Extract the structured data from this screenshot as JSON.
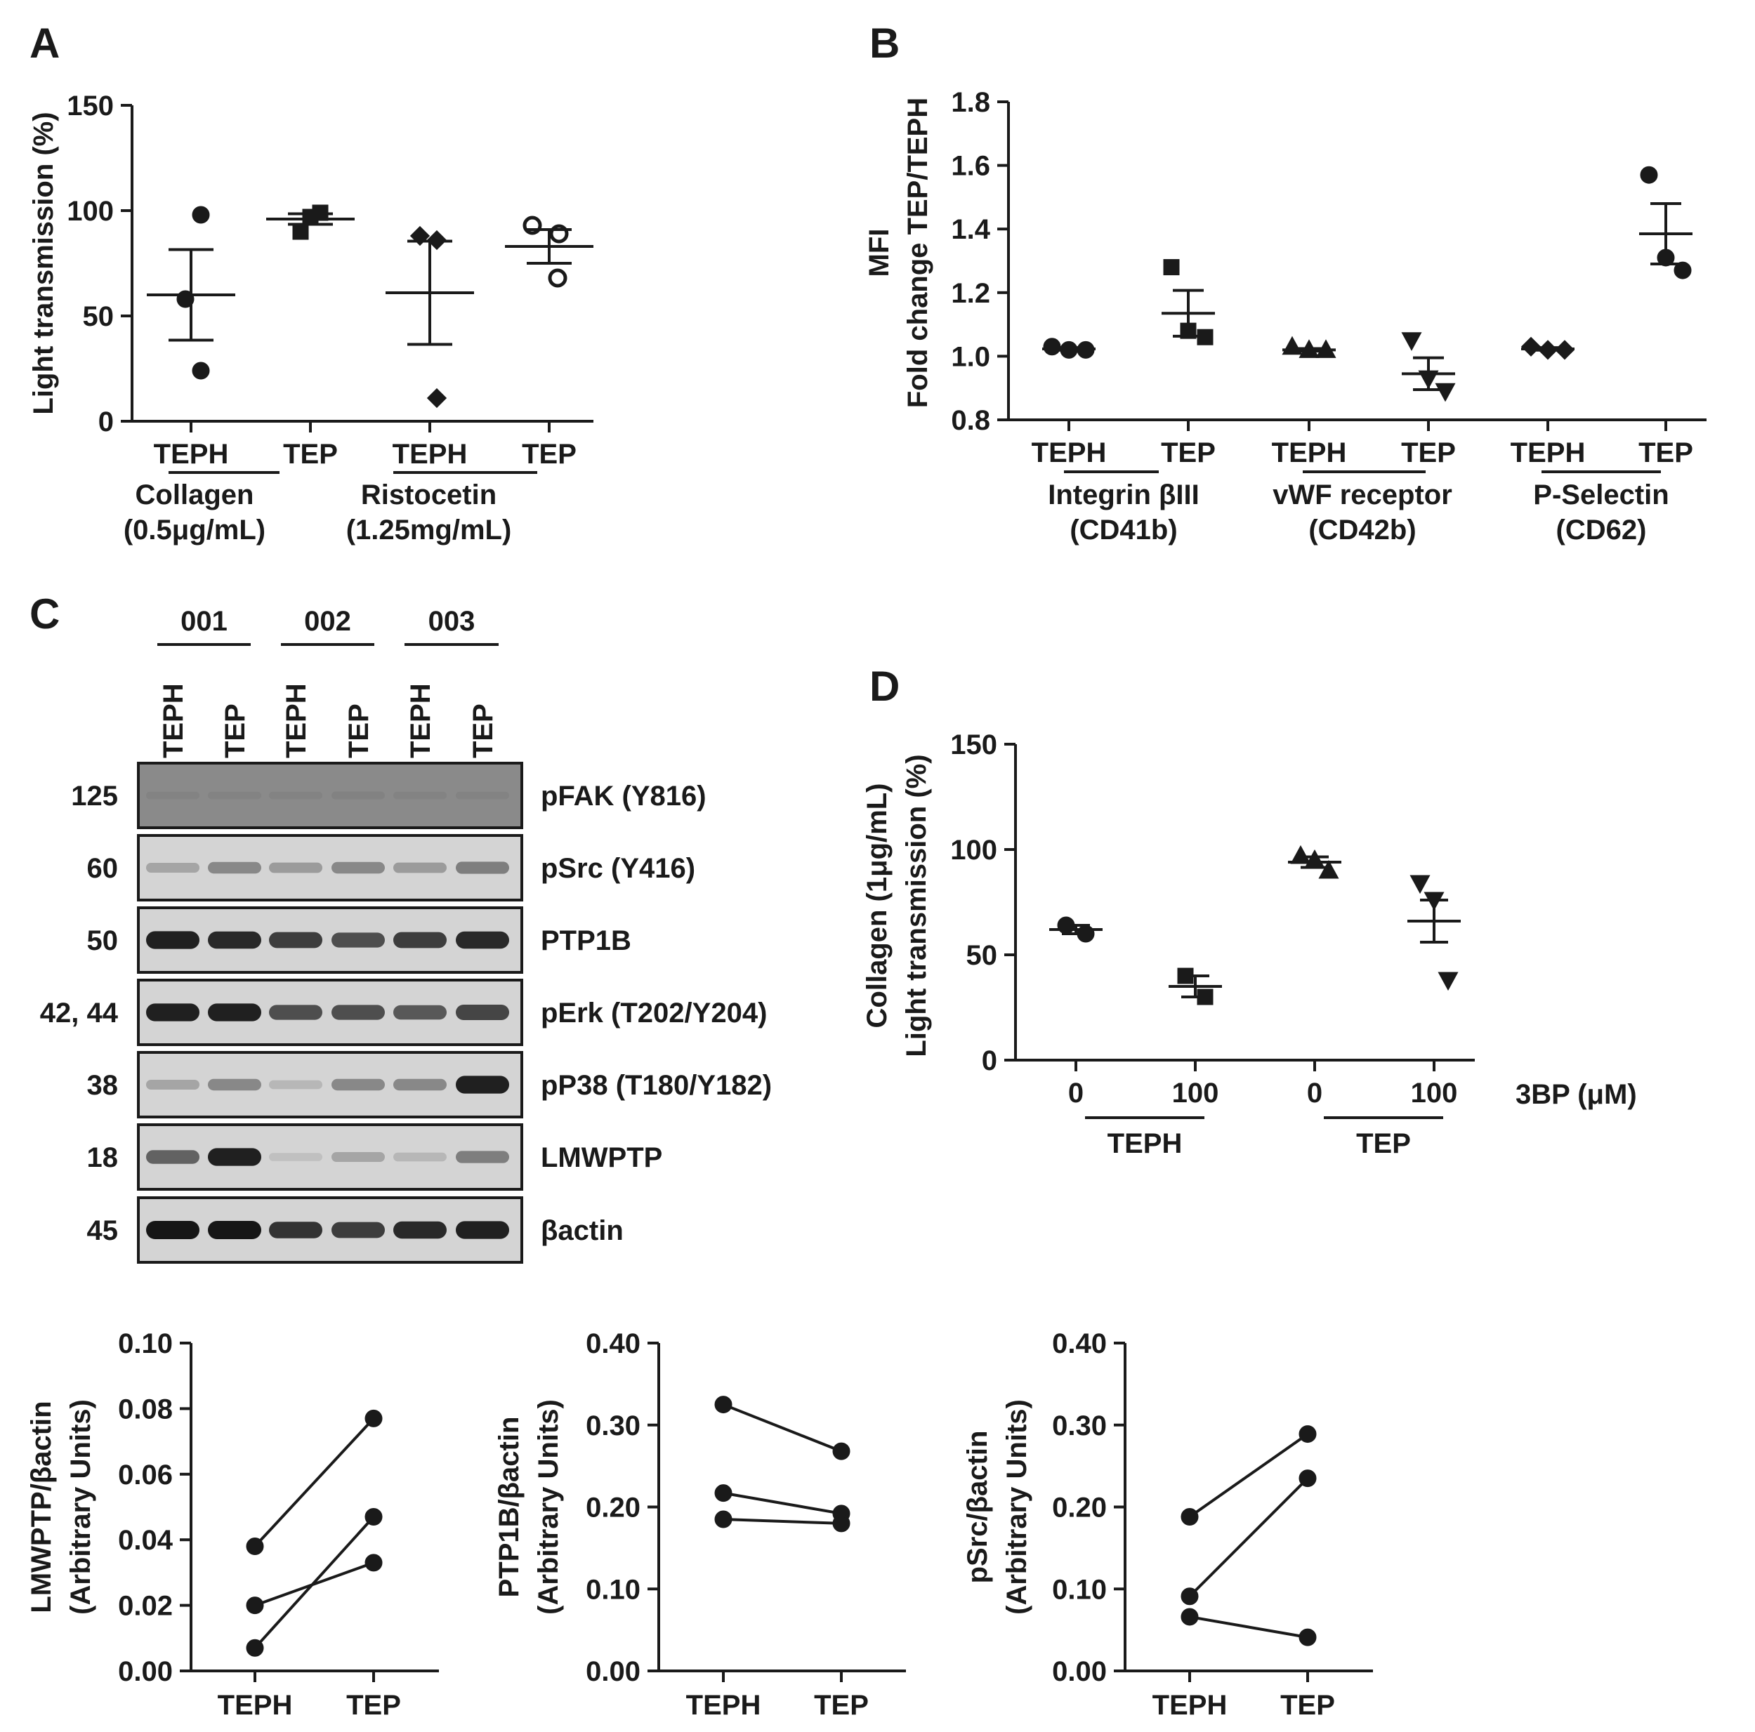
{
  "panels": {
    "A": {
      "letter": "A"
    },
    "B": {
      "letter": "B"
    },
    "C": {
      "letter": "C"
    },
    "D": {
      "letter": "D"
    }
  },
  "chart_data": [
    {
      "id": "A",
      "type": "scatter",
      "ylabel": "Light transmission (%)",
      "ylim": [
        0,
        150
      ],
      "yticks": [
        "0",
        "50",
        "100",
        "150"
      ],
      "categories": [
        "TEPH",
        "TEP",
        "TEPH",
        "TEP"
      ],
      "groups": [
        {
          "line1": "Collagen",
          "line2": "(0.5μg/mL)"
        },
        {
          "line1": "Ristocetin",
          "line2": "(1.25mg/mL)"
        }
      ],
      "series": [
        {
          "category": 0,
          "marker": "circle",
          "points": [
            98,
            58,
            24
          ],
          "mean": 60,
          "err": 21.5
        },
        {
          "category": 1,
          "marker": "square",
          "points": [
            99,
            97,
            90
          ],
          "mean": 96,
          "err": 2.5
        },
        {
          "category": 2,
          "marker": "diamond",
          "points": [
            88,
            86,
            11
          ],
          "mean": 61,
          "err": 24.5
        },
        {
          "category": 3,
          "marker": "open-circle",
          "points": [
            93,
            89,
            68
          ],
          "mean": 83,
          "err": 8
        }
      ]
    },
    {
      "id": "B",
      "type": "scatter",
      "ylabel_line1": "MFI",
      "ylabel_line2": "Fold change TEP/TEPH",
      "ylim": [
        0.8,
        1.8
      ],
      "yticks": [
        "0.8",
        "1.0",
        "1.2",
        "1.4",
        "1.6",
        "1.8"
      ],
      "categories": [
        "TEPH",
        "TEP",
        "TEPH",
        "TEP",
        "TEPH",
        "TEP"
      ],
      "groups": [
        {
          "line1": "Integrin βIII",
          "line2": "(CD41b)"
        },
        {
          "line1": "vWF receptor",
          "line2": "(CD42b)"
        },
        {
          "line1": "P-Selectin",
          "line2": "(CD62)"
        }
      ],
      "series": [
        {
          "category": 0,
          "marker": "circle",
          "points": [
            1.03,
            1.02,
            1.02
          ],
          "mean": 1.023,
          "err": 0.004
        },
        {
          "category": 1,
          "marker": "square",
          "points": [
            1.28,
            1.08,
            1.06
          ],
          "mean": 1.135,
          "err": 0.072
        },
        {
          "category": 2,
          "marker": "triangle-up",
          "points": [
            1.03,
            1.02,
            1.02
          ],
          "mean": 1.02,
          "err": 0.004
        },
        {
          "category": 3,
          "marker": "triangle-down",
          "points": [
            1.05,
            0.93,
            0.89
          ],
          "mean": 0.945,
          "err": 0.05
        },
        {
          "category": 4,
          "marker": "diamond",
          "points": [
            1.03,
            1.02,
            1.02
          ],
          "mean": 1.023,
          "err": 0.004
        },
        {
          "category": 5,
          "marker": "circle",
          "points": [
            1.57,
            1.31,
            1.27
          ],
          "mean": 1.385,
          "err": 0.095
        }
      ]
    },
    {
      "id": "D",
      "type": "scatter",
      "ylabel_line1": "Collagen (1μg/mL)",
      "ylabel_line2": "Light transmission (%)",
      "ylim": [
        0,
        150
      ],
      "yticks": [
        "0",
        "50",
        "100",
        "150"
      ],
      "categories": [
        "0",
        "100",
        "0",
        "100"
      ],
      "xunit": "3BP (μM)",
      "groups": [
        {
          "line1": "TEPH"
        },
        {
          "line1": "TEP"
        }
      ],
      "series": [
        {
          "category": 0,
          "marker": "circle",
          "points": [
            64,
            60
          ],
          "mean": 62,
          "err": 2
        },
        {
          "category": 1,
          "marker": "square",
          "points": [
            40,
            30
          ],
          "mean": 35,
          "err": 5
        },
        {
          "category": 2,
          "marker": "triangle-up",
          "points": [
            97,
            95,
            90
          ],
          "mean": 94,
          "err": 2.5
        },
        {
          "category": 3,
          "marker": "triangle-down",
          "points": [
            84,
            76,
            38
          ],
          "mean": 66,
          "err": 10
        }
      ]
    },
    {
      "id": "C1",
      "type": "line",
      "ylabel_line1": "LMWPTP/βactin",
      "ylabel_line2": "(Arbitrary Units)",
      "ylim": [
        0,
        0.1
      ],
      "yticks": [
        "0.00",
        "0.02",
        "0.04",
        "0.06",
        "0.08",
        "0.10"
      ],
      "categories": [
        "TEPH",
        "TEP"
      ],
      "series": [
        {
          "values": [
            0.038,
            0.077
          ]
        },
        {
          "values": [
            0.02,
            0.033
          ]
        },
        {
          "values": [
            0.007,
            0.047
          ]
        }
      ]
    },
    {
      "id": "C2",
      "type": "line",
      "ylabel_line1": "PTP1B/βactin",
      "ylabel_line2": "(Arbitrary Units)",
      "ylim": [
        0,
        0.4
      ],
      "yticks": [
        "0.00",
        "0.10",
        "0.20",
        "0.30",
        "0.40"
      ],
      "categories": [
        "TEPH",
        "TEP"
      ],
      "series": [
        {
          "values": [
            0.325,
            0.268
          ]
        },
        {
          "values": [
            0.217,
            0.192
          ]
        },
        {
          "values": [
            0.185,
            0.18
          ]
        }
      ]
    },
    {
      "id": "C3",
      "type": "line",
      "ylabel_line1": "pSrc/βactin",
      "ylabel_line2": "(Arbitrary Units)",
      "ylim": [
        0,
        0.4
      ],
      "yticks": [
        "0.00",
        "0.10",
        "0.20",
        "0.30",
        "0.40"
      ],
      "categories": [
        "TEPH",
        "TEP"
      ],
      "series": [
        {
          "values": [
            0.188,
            0.289
          ]
        },
        {
          "values": [
            0.091,
            0.235
          ]
        },
        {
          "values": [
            0.066,
            0.041
          ]
        }
      ]
    }
  ],
  "western_blot": {
    "subjects": [
      "001",
      "002",
      "003"
    ],
    "lanes": [
      "TEPH",
      "TEP",
      "TEPH",
      "TEP",
      "TEPH",
      "TEP"
    ],
    "rows": [
      {
        "mw": "125",
        "protein": "pFAK (Y816)",
        "intensity": [
          0.05,
          0.05,
          0.05,
          0.06,
          0.05,
          0.05
        ],
        "background": "dark"
      },
      {
        "mw": "60",
        "protein": "pSrc (Y416)",
        "intensity": [
          0.25,
          0.4,
          0.3,
          0.4,
          0.3,
          0.45
        ]
      },
      {
        "mw": "50",
        "protein": "PTP1B",
        "intensity": [
          0.95,
          0.9,
          0.8,
          0.7,
          0.8,
          0.9
        ]
      },
      {
        "mw": "42, 44",
        "protein": "pErk (T202/Y204)",
        "intensity": [
          0.95,
          0.95,
          0.7,
          0.7,
          0.65,
          0.75
        ]
      },
      {
        "mw": "38",
        "protein": "pP38 (T180/Y182)",
        "intensity": [
          0.25,
          0.4,
          0.15,
          0.4,
          0.4,
          0.95
        ]
      },
      {
        "mw": "18",
        "protein": "LMWPTP",
        "intensity": [
          0.6,
          0.95,
          0.1,
          0.25,
          0.15,
          0.45
        ]
      },
      {
        "mw": "45",
        "protein": "βactin",
        "intensity": [
          1.0,
          1.0,
          0.85,
          0.8,
          0.9,
          0.95
        ]
      }
    ]
  }
}
